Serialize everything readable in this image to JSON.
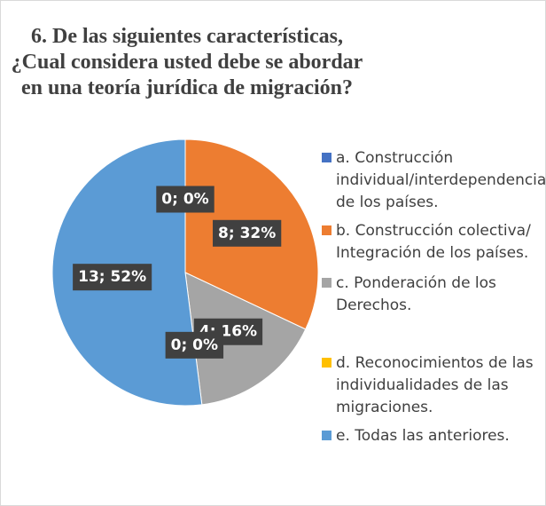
{
  "chart_data": {
    "type": "pie",
    "title": "6. De las siguientes características, ¿Cual considera usted debe se abordar en una teoría jurídica de migración?",
    "categories": [
      "a. Construcción individual/interdependencia de los países.",
      "b. Construcción colectiva/ Integración de los países.",
      "c. Ponderación de los Derechos.",
      "d. Reconocimientos de las individualidades de las migraciones.",
      "e. Todas las anteriores."
    ],
    "values": [
      0,
      8,
      4,
      0,
      13
    ],
    "value_labels": [
      "0; 0%",
      "8; 32%",
      "4; 16%",
      "0; 0%",
      "13; 52%"
    ],
    "colors": [
      "#4472c4",
      "#ed7d31",
      "#a5a5a5",
      "#ffc000",
      "#5b9bd5"
    ],
    "legend": "right"
  }
}
